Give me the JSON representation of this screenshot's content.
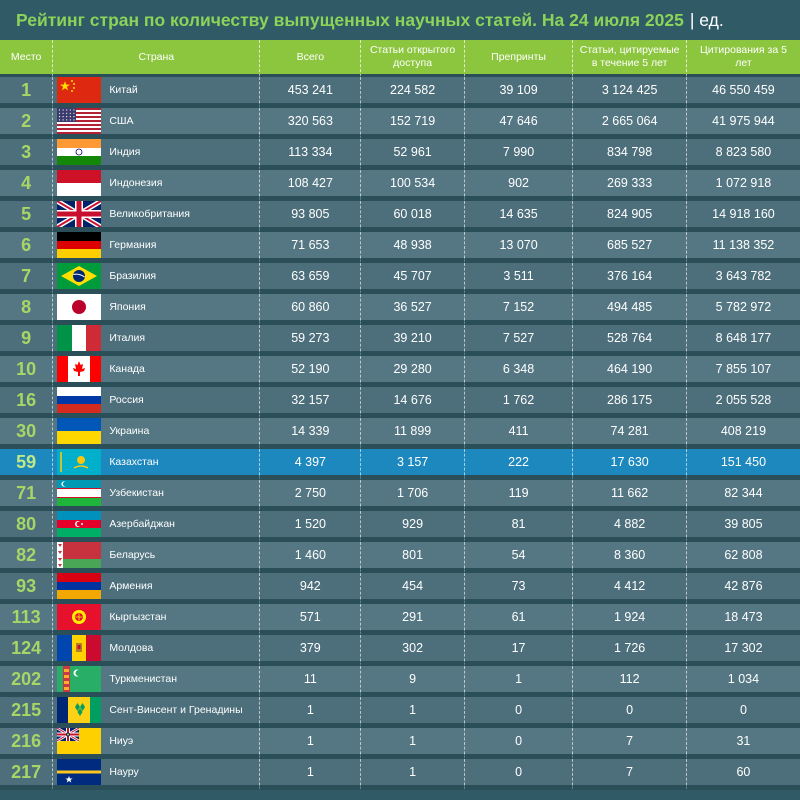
{
  "title": "Рейтинг стран по количеству выпущенных научных статей. На 24 июля 2025",
  "unit": "| ед.",
  "colors": {
    "accent": "#8cc63f",
    "background": "#2f5a66",
    "highlight": "#1d88bd"
  },
  "chart_data": {
    "type": "table",
    "columns": [
      "Место",
      "Страна",
      "Всего",
      "Статьи открытого доступа",
      "Препринты",
      "Статьи, цитируемые в течение 5 лет",
      "Цитирования за 5 лет"
    ],
    "rows": [
      {
        "rank": "1",
        "country": "Китай",
        "flag": "china",
        "total": "453 241",
        "open": "224 582",
        "preprints": "39 109",
        "cited": "3 124 425",
        "citations": "46 550 459"
      },
      {
        "rank": "2",
        "country": "США",
        "flag": "usa",
        "total": "320 563",
        "open": "152 719",
        "preprints": "47 646",
        "cited": "2 665 064",
        "citations": "41 975 944"
      },
      {
        "rank": "3",
        "country": "Индия",
        "flag": "india",
        "total": "113 334",
        "open": "52 961",
        "preprints": "7 990",
        "cited": "834 798",
        "citations": "8 823 580"
      },
      {
        "rank": "4",
        "country": "Индонезия",
        "flag": "indonesia",
        "total": "108 427",
        "open": "100 534",
        "preprints": "902",
        "cited": "269 333",
        "citations": "1 072 918"
      },
      {
        "rank": "5",
        "country": "Великобритания",
        "flag": "uk",
        "total": "93 805",
        "open": "60 018",
        "preprints": "14 635",
        "cited": "824 905",
        "citations": "14 918 160"
      },
      {
        "rank": "6",
        "country": "Германия",
        "flag": "germany",
        "total": "71 653",
        "open": "48 938",
        "preprints": "13 070",
        "cited": "685 527",
        "citations": "11 138 352"
      },
      {
        "rank": "7",
        "country": "Бразилия",
        "flag": "brazil",
        "total": "63 659",
        "open": "45 707",
        "preprints": "3 511",
        "cited": "376 164",
        "citations": "3 643 782"
      },
      {
        "rank": "8",
        "country": "Япония",
        "flag": "japan",
        "total": "60 860",
        "open": "36 527",
        "preprints": "7 152",
        "cited": "494 485",
        "citations": "5 782 972"
      },
      {
        "rank": "9",
        "country": "Италия",
        "flag": "italy",
        "total": "59 273",
        "open": "39 210",
        "preprints": "7 527",
        "cited": "528 764",
        "citations": "8 648 177"
      },
      {
        "rank": "10",
        "country": "Канада",
        "flag": "canada",
        "total": "52 190",
        "open": "29 280",
        "preprints": "6 348",
        "cited": "464 190",
        "citations": "7 855 107"
      },
      {
        "rank": "16",
        "country": "Россия",
        "flag": "russia",
        "total": "32 157",
        "open": "14 676",
        "preprints": "1 762",
        "cited": "286 175",
        "citations": "2 055 528"
      },
      {
        "rank": "30",
        "country": "Украина",
        "flag": "ukraine",
        "total": "14 339",
        "open": "11 899",
        "preprints": "411",
        "cited": "74 281",
        "citations": "408 219"
      },
      {
        "rank": "59",
        "country": "Казахстан",
        "flag": "kazakhstan",
        "total": "4 397",
        "open": "3 157",
        "preprints": "222",
        "cited": "17 630",
        "citations": "151 450",
        "highlight": true
      },
      {
        "rank": "71",
        "country": "Узбекистан",
        "flag": "uzbekistan",
        "total": "2 750",
        "open": "1 706",
        "preprints": "119",
        "cited": "11 662",
        "citations": "82 344"
      },
      {
        "rank": "80",
        "country": "Азербайджан",
        "flag": "azerbaijan",
        "total": "1 520",
        "open": "929",
        "preprints": "81",
        "cited": "4 882",
        "citations": "39 805"
      },
      {
        "rank": "82",
        "country": "Беларусь",
        "flag": "belarus",
        "total": "1 460",
        "open": "801",
        "preprints": "54",
        "cited": "8 360",
        "citations": "62 808"
      },
      {
        "rank": "93",
        "country": "Армения",
        "flag": "armenia",
        "total": "942",
        "open": "454",
        "preprints": "73",
        "cited": "4 412",
        "citations": "42 876"
      },
      {
        "rank": "113",
        "country": "Кыргызстан",
        "flag": "kyrgyzstan",
        "total": "571",
        "open": "291",
        "preprints": "61",
        "cited": "1 924",
        "citations": "18 473"
      },
      {
        "rank": "124",
        "country": "Молдова",
        "flag": "moldova",
        "total": "379",
        "open": "302",
        "preprints": "17",
        "cited": "1 726",
        "citations": "17 302"
      },
      {
        "rank": "202",
        "country": "Туркменистан",
        "flag": "turkmenistan",
        "total": "11",
        "open": "9",
        "preprints": "1",
        "cited": "112",
        "citations": "1 034"
      },
      {
        "rank": "215",
        "country": "Сент-Винсент и Гренадины",
        "flag": "saint-vincent",
        "total": "1",
        "open": "1",
        "preprints": "0",
        "cited": "0",
        "citations": "0"
      },
      {
        "rank": "216",
        "country": "Ниуэ",
        "flag": "niue",
        "total": "1",
        "open": "1",
        "preprints": "0",
        "cited": "7",
        "citations": "31"
      },
      {
        "rank": "217",
        "country": "Науру",
        "flag": "nauru",
        "total": "1",
        "open": "1",
        "preprints": "0",
        "cited": "7",
        "citations": "60"
      }
    ]
  }
}
